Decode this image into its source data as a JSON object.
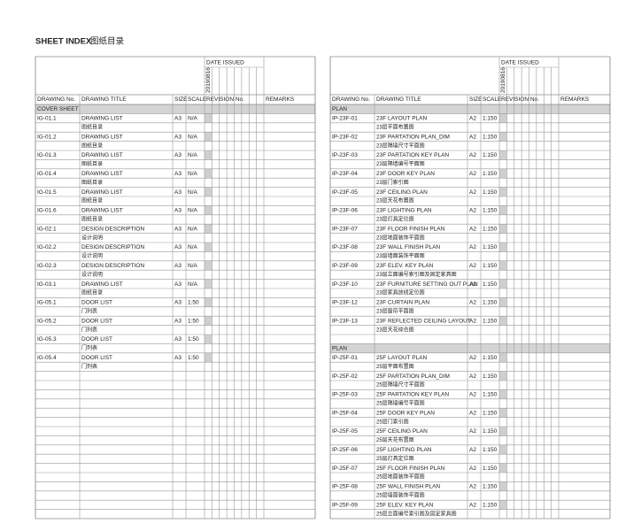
{
  "header": {
    "title": "SHEET INDEX",
    "title_cn": "图纸目录"
  },
  "columns": {
    "date_issued": "DATE ISSUED",
    "date": "20190816",
    "drawing_no": "DRAWING No.",
    "drawing_title": "DRAWING TITLE",
    "size": "SIZE",
    "scale": "SCALE",
    "revision_no": "REVISION No.",
    "remarks": "REMARKS"
  },
  "tables": [
    {
      "sections": [
        {
          "label": "COVER SHEET",
          "rows": [
            {
              "no": "IG-01.1",
              "title": "DRAWING LIST",
              "title_cn": "图纸目录",
              "size": "A3",
              "scale": "N/A"
            },
            {
              "no": "IG-01.2",
              "title": "DRAWING LIST",
              "title_cn": "图纸目录",
              "size": "A3",
              "scale": "N/A"
            },
            {
              "no": "IG-01.3",
              "title": "DRAWING LIST",
              "title_cn": "图纸目录",
              "size": "A3",
              "scale": "N/A"
            },
            {
              "no": "IG-01.4",
              "title": "DRAWING LIST",
              "title_cn": "图纸目录",
              "size": "A3",
              "scale": "N/A"
            },
            {
              "no": "IG-01.5",
              "title": "DRAWING LIST",
              "title_cn": "图纸目录",
              "size": "A3",
              "scale": "N/A"
            },
            {
              "no": "IG-01.6",
              "title": "DRAWING LIST",
              "title_cn": "图纸目录",
              "size": "A3",
              "scale": "N/A"
            },
            {
              "no": "IG-02.1",
              "title": "DESIGN  DESCRIPTION",
              "title_cn": "设计说明",
              "size": "A3",
              "scale": "N/A"
            },
            {
              "no": "IG-02.2",
              "title": "DESIGN  DESCRIPTION",
              "title_cn": "设计说明",
              "size": "A3",
              "scale": "N/A"
            },
            {
              "no": "IG-02.3",
              "title": "DESIGN  DESCRIPTION",
              "title_cn": "设计说明",
              "size": "A3",
              "scale": "N/A"
            },
            {
              "no": "IG-03.1",
              "title": "DRAWING LIST",
              "title_cn": "图纸目录",
              "size": "A3",
              "scale": "N/A"
            },
            {
              "no": "IG-05.1",
              "title": "DOOR LIST",
              "title_cn": "门列表",
              "size": "A3",
              "scale": "1:50"
            },
            {
              "no": "IG-05.2",
              "title": "DOOR LIST",
              "title_cn": "门列表",
              "size": "A3",
              "scale": "1:50"
            },
            {
              "no": "IG-05.3",
              "title": "DOOR LIST",
              "title_cn": "门列表",
              "size": "A3",
              "scale": "1:50"
            },
            {
              "no": "IG-05.4",
              "title": "DOOR LIST",
              "title_cn": "门列表",
              "size": "A3",
              "scale": "1:50"
            }
          ]
        }
      ]
    },
    {
      "sections": [
        {
          "label": "PLAN",
          "rows": [
            {
              "no": "IP-23F-01",
              "title": "23F LAYOUT PLAN",
              "title_cn": "23层平面布置图",
              "size": "A2",
              "scale": "1:150"
            },
            {
              "no": "IP-23F-02",
              "title": "23F PARTATION PLAN_DIM",
              "title_cn": "23层隔墙尺寸平面图",
              "size": "A2",
              "scale": "1:150"
            },
            {
              "no": "IP-23F-03",
              "title": "23F PARTATION KEY PLAN",
              "title_cn": "23层隔墙编号平面图",
              "size": "A2",
              "scale": "1:150"
            },
            {
              "no": "IP-23F-04",
              "title": "23F DOOR KEY PLAN",
              "title_cn": "23层门索引图",
              "size": "A2",
              "scale": "1:150"
            },
            {
              "no": "IP-23F-05",
              "title": "23F CEILING PLAN",
              "title_cn": "23层天花布置图",
              "size": "A2",
              "scale": "1:150"
            },
            {
              "no": "IP-23F-06",
              "title": "23F LIGHTING PLAN",
              "title_cn": "23层灯具定位图",
              "size": "A2",
              "scale": "1:150"
            },
            {
              "no": "IP-23F-07",
              "title": "23F FLOOR FINISH PLAN",
              "title_cn": "23层地面装饰平面图",
              "size": "A2",
              "scale": "1:150"
            },
            {
              "no": "IP-23F-08",
              "title": "23F WALL FINISH PLAN",
              "title_cn": "23层墙面装饰平面图",
              "size": "A2",
              "scale": "1:150"
            },
            {
              "no": "IP-23F-09",
              "title": "23F ELEV. KEY PLAN",
              "title_cn": "23层立面编号索引图及固定家具图",
              "size": "A2",
              "scale": "1:150"
            },
            {
              "no": "IP-23F-10",
              "title": "23F FURNITURE SETTING OUT PLAN",
              "title_cn": "23层家具放线定位图",
              "size": "A2",
              "scale": "1:150"
            },
            {
              "no": "IP-23F-12",
              "title": "23F CURTAIN PLAN",
              "title_cn": "23层窗帘平面图",
              "size": "A2",
              "scale": "1:150"
            },
            {
              "no": "IP-23F-13",
              "title": "23F REFLECTED CEILING LAYOUT",
              "title_cn": "23层天花综合图",
              "size": "A2",
              "scale": "1:150"
            }
          ]
        },
        {
          "label": "PLAN",
          "rows": [
            {
              "no": "IP-25F-01",
              "title": "25F LAYOUT PLAN",
              "title_cn": "25层平面布置图",
              "size": "A2",
              "scale": "1:150"
            },
            {
              "no": "IP-25F-02",
              "title": "25F PARTATION PLAN_DIM",
              "title_cn": "25层隔墙尺寸平面图",
              "size": "A2",
              "scale": "1:150"
            },
            {
              "no": "IP-25F-03",
              "title": "25F PARTATION KEY PLAN",
              "title_cn": "25层隔墙编号平面图",
              "size": "A2",
              "scale": "1:150"
            },
            {
              "no": "IP-25F-04",
              "title": "25F DOOR KEY PLAN",
              "title_cn": "25层门索引图",
              "size": "A2",
              "scale": "1:150"
            },
            {
              "no": "IP-25F-05",
              "title": "25F CEILING PLAN",
              "title_cn": "25层天花布置图",
              "size": "A2",
              "scale": "1:150"
            },
            {
              "no": "IP-25F-06",
              "title": "25F LIGHTING PLAN",
              "title_cn": "25层灯具定位图",
              "size": "A2",
              "scale": "1:150"
            },
            {
              "no": "IP-25F-07",
              "title": "25F FLOOR FINISH PLAN",
              "title_cn": "25层地面装饰平面图",
              "size": "A2",
              "scale": "1:150"
            },
            {
              "no": "IP-25F-08",
              "title": "25F WALL FINISH PLAN",
              "title_cn": "25层墙面装饰平面图",
              "size": "A2",
              "scale": "1:150"
            },
            {
              "no": "IP-25F-09",
              "title": "25F ELEV. KEY PLAN",
              "title_cn": "25层立面编号索引图及固定家具图",
              "size": "A2",
              "scale": "1:150"
            }
          ]
        }
      ]
    }
  ]
}
